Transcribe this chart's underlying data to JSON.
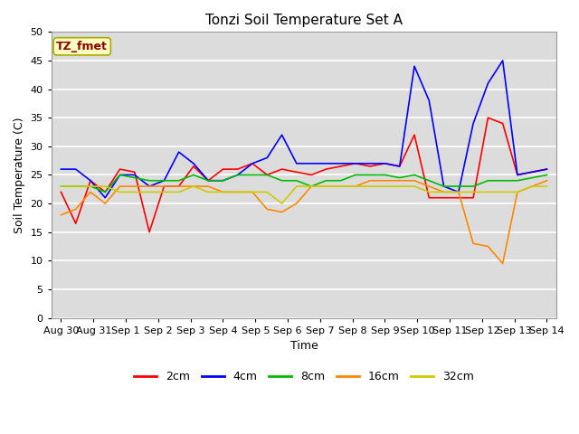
{
  "title": "Tonzi Soil Temperature Set A",
  "xlabel": "Time",
  "ylabel": "Soil Temperature (C)",
  "ylim": [
    0,
    50
  ],
  "yticks": [
    0,
    5,
    10,
    15,
    20,
    25,
    30,
    35,
    40,
    45,
    50
  ],
  "background_color": "#dcdcdc",
  "annotation_text": "TZ_fmet",
  "annotation_color": "#8b0000",
  "annotation_bg": "#ffffc0",
  "annotation_edge": "#aaaa00",
  "series_colors": {
    "2cm": "#ff0000",
    "4cm": "#0000ff",
    "8cm": "#00bb00",
    "16cm": "#ff8800",
    "32cm": "#cccc00"
  },
  "x_labels": [
    "Aug 30",
    "Aug 31",
    "Sep 1",
    "Sep 2",
    "Sep 3",
    "Sep 4",
    "Sep 5",
    "Sep 6",
    "Sep 7",
    "Sep 8",
    "Sep 9",
    "Sep 10",
    "Sep 11",
    "Sep 12",
    "Sep 13",
    "Sep 14"
  ],
  "n_ticks": 16,
  "data_2cm": [
    22,
    16.5,
    24,
    22,
    26,
    25.5,
    15,
    23,
    23,
    26.5,
    24,
    26,
    26,
    27,
    25,
    26,
    25.5,
    25,
    26,
    26.5,
    27,
    26.5,
    27,
    26.5,
    32,
    21,
    21,
    21,
    21,
    35,
    34,
    25,
    25.5,
    26
  ],
  "data_4cm": [
    26,
    26,
    24,
    21,
    25,
    25,
    23,
    24,
    29,
    27,
    24,
    24,
    25,
    27,
    28,
    32,
    27,
    27,
    27,
    27,
    27,
    27,
    27,
    26.5,
    44,
    38,
    23,
    22,
    34,
    41,
    45,
    25,
    25.5,
    26
  ],
  "data_8cm": [
    23,
    23,
    23,
    22,
    25,
    24.5,
    24,
    24,
    24,
    25,
    24,
    24,
    25,
    25,
    25,
    24,
    24,
    23,
    24,
    24,
    25,
    25,
    25,
    24.5,
    25,
    24,
    23,
    23,
    23,
    24,
    24,
    24,
    24.5,
    25
  ],
  "data_16cm": [
    18,
    19,
    22,
    20,
    23,
    23,
    23,
    23,
    23,
    23,
    23,
    22,
    22,
    22,
    19,
    18.5,
    20,
    23,
    23,
    23,
    23,
    24,
    24,
    24,
    24,
    23,
    22,
    22,
    13,
    12.5,
    9.5,
    22,
    23,
    24
  ],
  "data_32cm": [
    23,
    23,
    23,
    23,
    22,
    22,
    22,
    22,
    22,
    23,
    22,
    22,
    22,
    22,
    22,
    20,
    23,
    23,
    23,
    23,
    23,
    23,
    23,
    23,
    23,
    22,
    22,
    22,
    22,
    22,
    22,
    22,
    23,
    23
  ],
  "n_points": 34
}
